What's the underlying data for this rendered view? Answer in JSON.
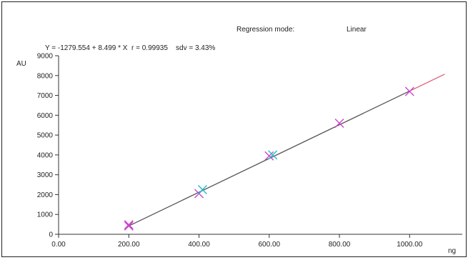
{
  "header": {
    "mode_label": "Regression mode:",
    "mode_value": "Linear",
    "equation": "Y = -1279.554 + 8.499 * X  r = 0.99935    sdv = 3.43%"
  },
  "chart_data": {
    "type": "scatter",
    "xlabel": "ng",
    "ylabel": "AU",
    "xlim": [
      0,
      1150
    ],
    "ylim": [
      0,
      9000
    ],
    "x_ticks": [
      0,
      200,
      400,
      600,
      800,
      1000
    ],
    "x_tick_labels": [
      "0.00",
      "200.00",
      "400.00",
      "600.00",
      "800.00",
      "1000.00"
    ],
    "y_ticks": [
      0,
      1000,
      2000,
      3000,
      4000,
      5000,
      6000,
      7000,
      8000,
      9000
    ],
    "y_tick_labels": [
      "0",
      "1000",
      "2000",
      "3000",
      "4000",
      "5000",
      "6000",
      "7000",
      "8000",
      "9000"
    ],
    "regression": {
      "intercept": -1279.554,
      "slope": 8.499,
      "x_range": [
        200,
        1100
      ]
    },
    "series": [
      {
        "marker": "x",
        "color": "#cc44cc",
        "points": [
          {
            "x": 200,
            "y": 420
          },
          {
            "x": 200,
            "y": 480
          },
          {
            "x": 400,
            "y": 2050
          },
          {
            "x": 600,
            "y": 3950
          },
          {
            "x": 800,
            "y": 5600
          },
          {
            "x": 1000,
            "y": 7200
          }
        ]
      },
      {
        "marker": "x",
        "color": "#22bbcc",
        "points": [
          {
            "x": 410,
            "y": 2250
          },
          {
            "x": 610,
            "y": 4000
          }
        ]
      }
    ],
    "colors": {
      "line": "#555555",
      "line_tail": "#e0607a",
      "axis": "#333333"
    }
  }
}
